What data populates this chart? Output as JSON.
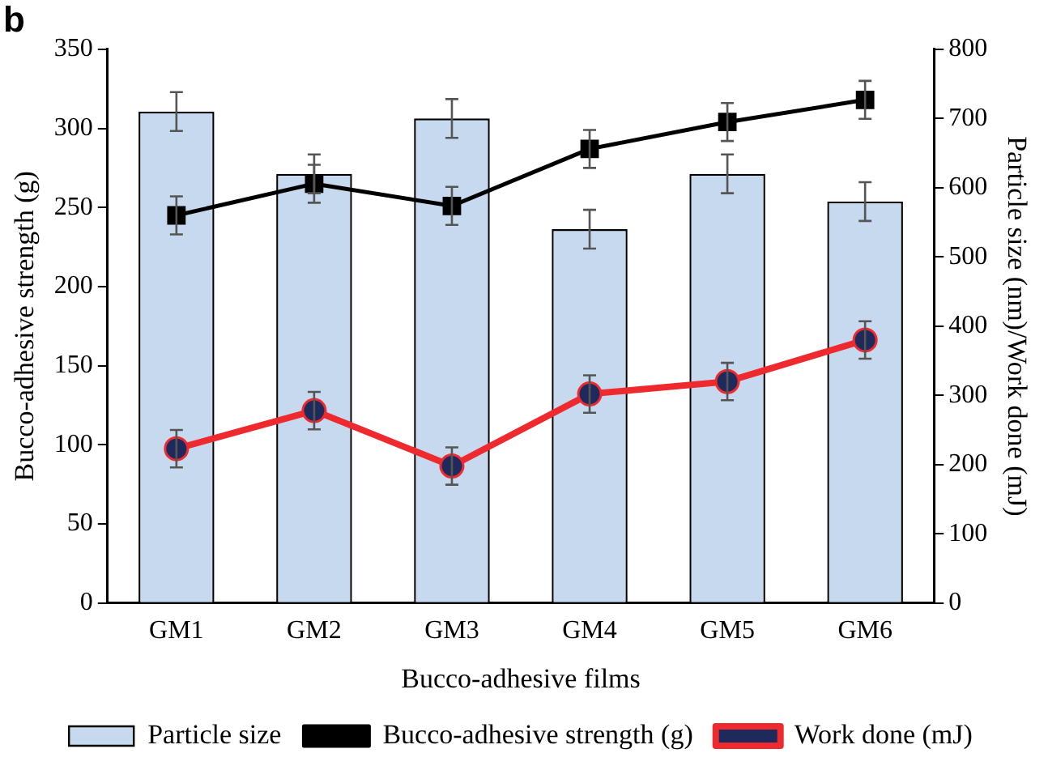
{
  "chart_data": {
    "type": "bar",
    "title": "b",
    "xlabel": "Bucco-adhesive films",
    "ylabel": "Bucco-adhesive strength (g)",
    "y2label": "Particle size (nm)/Work done (mJ)",
    "categories": [
      "GM1",
      "GM2",
      "GM3",
      "GM4",
      "GM5",
      "GM6"
    ],
    "series": [
      {
        "name": "Particle size",
        "axis": "y2",
        "color": "#c6d9ef",
        "values": [
          710,
          620,
          700,
          540,
          620,
          580
        ],
        "errors": [
          28,
          28,
          28,
          28,
          28,
          28
        ]
      },
      {
        "name": "Bucco-adhesive strength (g)",
        "type": "line",
        "axis": "y",
        "color": "#000000",
        "marker": "square",
        "values": [
          245,
          265,
          251,
          287,
          304,
          318
        ],
        "errors": [
          12,
          12,
          12,
          12,
          12,
          12
        ]
      },
      {
        "name": "Work done (mJ)",
        "type": "line",
        "axis": "y2",
        "color": "#ee2a2f",
        "marker": "circle",
        "values": [
          223,
          278,
          198,
          302,
          320,
          380
        ],
        "errors": [
          27,
          27,
          27,
          27,
          27,
          27
        ]
      }
    ],
    "ylim": [
      0,
      350
    ],
    "yticks": [
      0,
      50,
      100,
      150,
      200,
      250,
      300,
      350
    ],
    "y2lim": [
      0,
      800
    ],
    "y2ticks": [
      0,
      100,
      200,
      300,
      400,
      500,
      600,
      700,
      800
    ],
    "grid": false,
    "legend": "bottom"
  }
}
